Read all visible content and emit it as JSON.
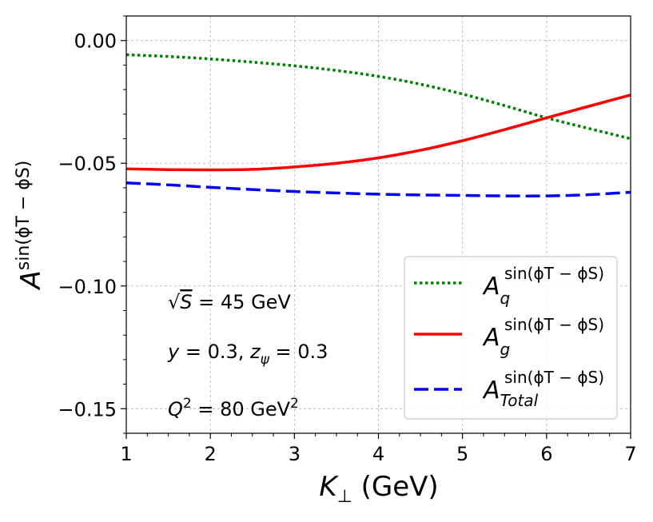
{
  "chart_data": {
    "type": "line",
    "title": "",
    "xlabel": {
      "italic": "K",
      "sub": "⊥",
      "rest": " (GeV)"
    },
    "ylabel": {
      "italic": "A",
      "sup": "sin(ϕT − ϕS)"
    },
    "xlim": [
      1,
      7
    ],
    "ylim": [
      -0.16,
      0.01
    ],
    "xticks": [
      1,
      2,
      3,
      4,
      5,
      6,
      7
    ],
    "xtick_labels": [
      "1",
      "2",
      "3",
      "4",
      "5",
      "6",
      "7"
    ],
    "yticks": [
      0.0,
      -0.05,
      -0.1,
      -0.15
    ],
    "ytick_labels": [
      "0.00",
      "−0.05",
      "−0.10",
      "−0.15"
    ],
    "grid": true,
    "legend_position": "bottom-right",
    "x": [
      1,
      1.5,
      2,
      2.5,
      3,
      3.5,
      4,
      4.5,
      5,
      5.5,
      6,
      6.5,
      7
    ],
    "series": [
      {
        "name": "q",
        "legend_main": "A",
        "legend_sub": "q",
        "legend_sup": "sin(ϕT − ϕS)",
        "color": "#008000",
        "style": "dotted",
        "values": [
          -0.0058,
          -0.0065,
          -0.0075,
          -0.0088,
          -0.0103,
          -0.0122,
          -0.0146,
          -0.0178,
          -0.0218,
          -0.0265,
          -0.0315,
          -0.0358,
          -0.04
        ]
      },
      {
        "name": "g",
        "legend_main": "A",
        "legend_sub": "g",
        "legend_sup": "sin(ϕT − ϕS)",
        "color": "#ff0000",
        "style": "solid",
        "values": [
          -0.0523,
          -0.0526,
          -0.0527,
          -0.0525,
          -0.0515,
          -0.05,
          -0.0478,
          -0.0447,
          -0.0408,
          -0.0363,
          -0.0315,
          -0.0268,
          -0.0222
        ]
      },
      {
        "name": "Total",
        "legend_main": "A",
        "legend_sub": "Total",
        "legend_sup": "sin(ϕT − ϕS)",
        "color": "#0000ff",
        "style": "dashed",
        "values": [
          -0.058,
          -0.0588,
          -0.0598,
          -0.0607,
          -0.0615,
          -0.0621,
          -0.0626,
          -0.0629,
          -0.0631,
          -0.0633,
          -0.0633,
          -0.0628,
          -0.0618
        ]
      }
    ],
    "annotations": {
      "energy": {
        "sqrt": "S",
        "rest": " = 45 GeV"
      },
      "params": {
        "y": "y",
        "y_val": " = 0.3, ",
        "z": "z",
        "z_sub": "ψ",
        "z_val": " = 0.3"
      },
      "q2": {
        "q": "Q",
        "sup": "2",
        "mid": " = 80 GeV",
        "sup2": "2"
      }
    }
  }
}
